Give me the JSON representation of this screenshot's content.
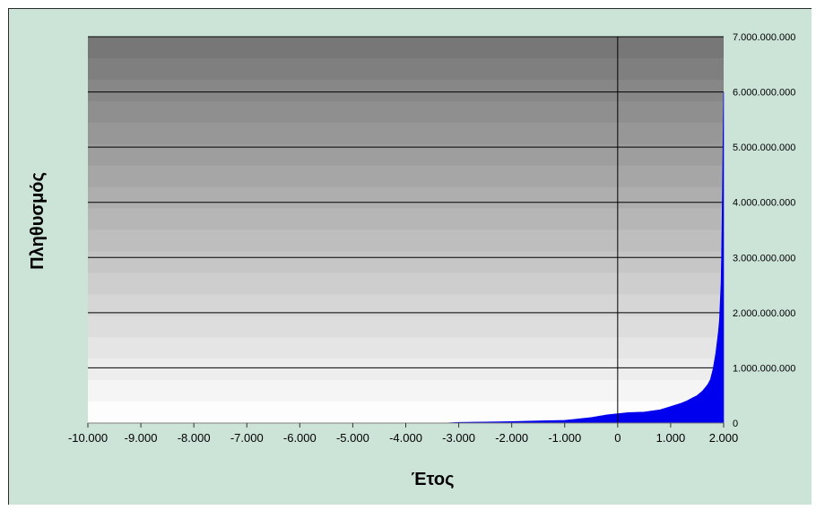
{
  "chart_data": {
    "type": "area",
    "title": "",
    "xlabel": "Έτος",
    "ylabel": "Πληθυσμός",
    "xlim": [
      -10000,
      2000
    ],
    "ylim": [
      0,
      7000000000
    ],
    "x_ticks": [
      {
        "value": -10000,
        "label": "-10.000"
      },
      {
        "value": -9000,
        "label": "-9.000"
      },
      {
        "value": -8000,
        "label": "-8.000"
      },
      {
        "value": -7000,
        "label": "-7.000"
      },
      {
        "value": -6000,
        "label": "-6.000"
      },
      {
        "value": -5000,
        "label": "-5.000"
      },
      {
        "value": -4000,
        "label": "-4.000"
      },
      {
        "value": -3000,
        "label": "-3.000"
      },
      {
        "value": -2000,
        "label": "-2.000"
      },
      {
        "value": -1000,
        "label": "-1.000"
      },
      {
        "value": 0,
        "label": "0"
      },
      {
        "value": 1000,
        "label": "1.000"
      },
      {
        "value": 2000,
        "label": "2.000"
      }
    ],
    "y_ticks": [
      {
        "value": 0,
        "label": "0"
      },
      {
        "value": 1000000000,
        "label": "1.000.000.000"
      },
      {
        "value": 2000000000,
        "label": "2.000.000.000"
      },
      {
        "value": 3000000000,
        "label": "3.000.000.000"
      },
      {
        "value": 4000000000,
        "label": "4.000.000.000"
      },
      {
        "value": 5000000000,
        "label": "5.000.000.000"
      },
      {
        "value": 6000000000,
        "label": "6.000.000.000"
      },
      {
        "value": 7000000000,
        "label": "7.000.000.000"
      }
    ],
    "y_axis_side": "right",
    "grid": {
      "horizontal": true,
      "vertical": false
    },
    "vertical_reference_line_x": 0,
    "series": [
      {
        "color": "#0000ee",
        "x": [
          -10000,
          -3300,
          -3000,
          -2500,
          -2000,
          -1500,
          -1000,
          -500,
          -200,
          0,
          200,
          500,
          800,
          1000,
          1200,
          1300,
          1400,
          1500,
          1600,
          1700,
          1750,
          1800,
          1850,
          1900,
          1920,
          1940,
          1950,
          1960,
          1970,
          1980,
          1990,
          2000
        ],
        "y": [
          0,
          0,
          14000000,
          20000000,
          27000000,
          40000000,
          50000000,
          100000000,
          150000000,
          170000000,
          190000000,
          200000000,
          240000000,
          300000000,
          360000000,
          400000000,
          450000000,
          500000000,
          580000000,
          700000000,
          790000000,
          980000000,
          1260000000,
          1650000000,
          1860000000,
          2300000000,
          2520000000,
          3020000000,
          3700000000,
          4440000000,
          5300000000,
          6000000000
        ]
      }
    ],
    "colors": {
      "background": "#cce3d8",
      "plot_top": "#777777",
      "plot_bottom": "#fdfdfd",
      "fill": "#0000ee"
    }
  }
}
